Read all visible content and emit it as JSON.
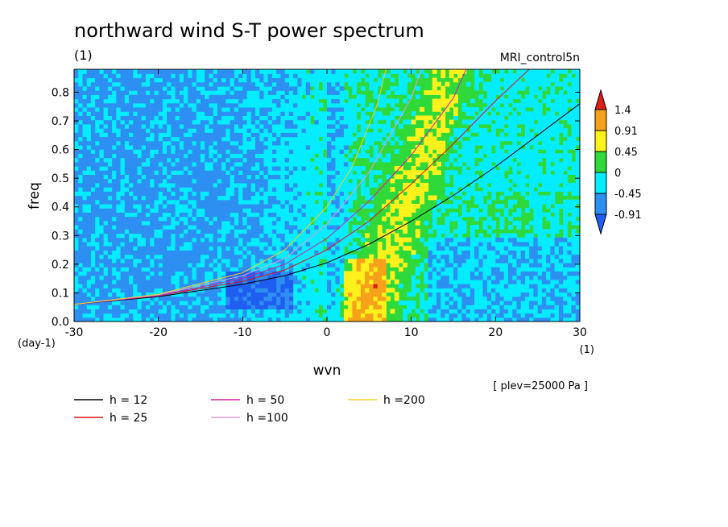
{
  "chart_data": {
    "type": "heatmap",
    "title": "northward wind S-T power spectrum",
    "subtitle": "(1)",
    "dataset": "MRI_control5n",
    "xlabel": "wvn",
    "ylabel": "freq",
    "x_unit": "(1)",
    "y_unit": "(day-1)",
    "xlim": [
      -30,
      30
    ],
    "ylim": [
      0,
      0.88
    ],
    "x_ticks": [
      "-30",
      "-20",
      "-10",
      "0",
      "10",
      "20",
      "30"
    ],
    "y_ticks": [
      "0.0",
      "0.1",
      "0.2",
      "0.3",
      "0.4",
      "0.5",
      "0.6",
      "0.7",
      "0.8"
    ],
    "plev_note": "[ plev=25000 Pa ]",
    "colorbar": {
      "labels": [
        "1.4",
        "0.91",
        "0.45",
        "0",
        "-0.45",
        "-0.91"
      ],
      "colors": [
        "#dd1f14",
        "#f5a21a",
        "#fff21c",
        "#2fd93a",
        "#04ecff",
        "#2e8ff2",
        "#1f5ef0"
      ]
    },
    "series": [
      {
        "name": "h = 12",
        "h": 12,
        "color": "#000000",
        "x": [
          -30,
          -20,
          -10,
          -5,
          0,
          5,
          10,
          15,
          20,
          25,
          30
        ],
        "y": [
          0.06,
          0.087,
          0.13,
          0.16,
          0.205,
          0.27,
          0.35,
          0.44,
          0.54,
          0.65,
          0.76
        ]
      },
      {
        "name": "h = 25",
        "h": 25,
        "color": "#e01010",
        "x": [
          -30,
          -20,
          -10,
          -5,
          0,
          5,
          10,
          15,
          20,
          24
        ],
        "y": [
          0.06,
          0.09,
          0.14,
          0.18,
          0.25,
          0.35,
          0.48,
          0.62,
          0.77,
          0.88
        ]
      },
      {
        "name": "h = 50",
        "h": 50,
        "color": "#d020a0",
        "x": [
          -30,
          -20,
          -10,
          -5,
          0,
          5,
          10,
          15,
          16.5
        ],
        "y": [
          0.06,
          0.09,
          0.15,
          0.2,
          0.29,
          0.42,
          0.58,
          0.78,
          0.88
        ]
      },
      {
        "name": "h =100",
        "h": 100,
        "color": "#d8a0d8",
        "x": [
          -30,
          -20,
          -10,
          -5,
          0,
          5,
          10,
          11.2
        ],
        "y": [
          0.06,
          0.093,
          0.16,
          0.22,
          0.34,
          0.52,
          0.78,
          0.88
        ]
      },
      {
        "name": "h =200",
        "h": 200,
        "color": "#f0d020",
        "x": [
          -30,
          -20,
          -10,
          -5,
          0,
          3,
          6,
          7
        ],
        "y": [
          0.06,
          0.095,
          0.17,
          0.25,
          0.4,
          0.54,
          0.76,
          0.88
        ]
      }
    ]
  }
}
